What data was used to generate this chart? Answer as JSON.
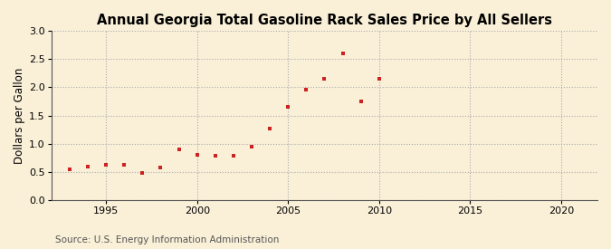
{
  "title": "Annual Georgia Total Gasoline Rack Sales Price by All Sellers",
  "ylabel": "Dollars per Gallon",
  "source": "Source: U.S. Energy Information Administration",
  "background_color": "#faf0d8",
  "plot_bg_color": "#faf0d8",
  "marker_color": "#cc2222",
  "years": [
    1993,
    1994,
    1995,
    1996,
    1997,
    1998,
    1999,
    2000,
    2001,
    2002,
    2003,
    2004,
    2005,
    2006,
    2007,
    2008,
    2009,
    2010
  ],
  "values": [
    0.54,
    0.59,
    0.63,
    0.63,
    0.48,
    0.58,
    0.9,
    0.8,
    0.78,
    0.78,
    0.95,
    1.26,
    1.66,
    1.96,
    2.15,
    2.6,
    1.75,
    2.15
  ],
  "xlim": [
    1992,
    2022
  ],
  "ylim": [
    0.0,
    3.0
  ],
  "xticks": [
    1995,
    2000,
    2005,
    2010,
    2015,
    2020
  ],
  "yticks": [
    0.0,
    0.5,
    1.0,
    1.5,
    2.0,
    2.5,
    3.0
  ],
  "title_fontsize": 10.5,
  "label_fontsize": 8.5,
  "tick_fontsize": 8,
  "source_fontsize": 7.5
}
